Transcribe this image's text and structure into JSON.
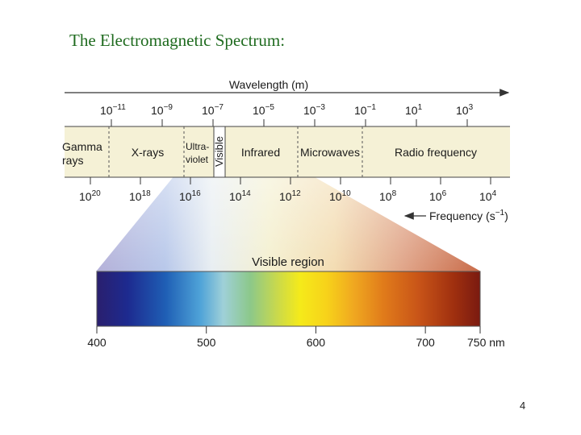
{
  "slide": {
    "title": "The Electromagnetic Spectrum:",
    "page_number": "4"
  },
  "spectrum": {
    "wavelength_label": "Wavelength (m)",
    "frequency_label": "Frequency (s",
    "frequency_exponent": "−1",
    "frequency_close": ")",
    "wavelength_ticks": [
      {
        "base": "10",
        "exp": "−11"
      },
      {
        "base": "10",
        "exp": "−9"
      },
      {
        "base": "10",
        "exp": "−7"
      },
      {
        "base": "10",
        "exp": "−5"
      },
      {
        "base": "10",
        "exp": "−3"
      },
      {
        "base": "10",
        "exp": "−1"
      },
      {
        "base": "10",
        "exp": "1"
      },
      {
        "base": "10",
        "exp": "3"
      }
    ],
    "frequency_ticks": [
      {
        "base": "10",
        "exp": "20"
      },
      {
        "base": "10",
        "exp": "18"
      },
      {
        "base": "10",
        "exp": "16"
      },
      {
        "base": "10",
        "exp": "14"
      },
      {
        "base": "10",
        "exp": "12"
      },
      {
        "base": "10",
        "exp": "10"
      },
      {
        "base": "10",
        "exp": "8"
      },
      {
        "base": "10",
        "exp": "6"
      },
      {
        "base": "10",
        "exp": "4"
      }
    ],
    "regions": {
      "gamma_line1": "Gamma",
      "gamma_line2": "rays",
      "xrays": "X-rays",
      "uv_line1": "Ultra-",
      "uv_line2": "violet",
      "visible": "Visible",
      "infrared": "Infrared",
      "microwaves": "Microwaves",
      "radio": "Radio frequency"
    }
  },
  "visible_region": {
    "title": "Visible region",
    "tick_labels": [
      "400",
      "500",
      "600",
      "700",
      "750 nm"
    ],
    "tick_values_nm": [
      400,
      500,
      600,
      700,
      750
    ]
  },
  "colors": {
    "band_fill": "#f5f1d6",
    "title_color": "#1f6b1f"
  }
}
